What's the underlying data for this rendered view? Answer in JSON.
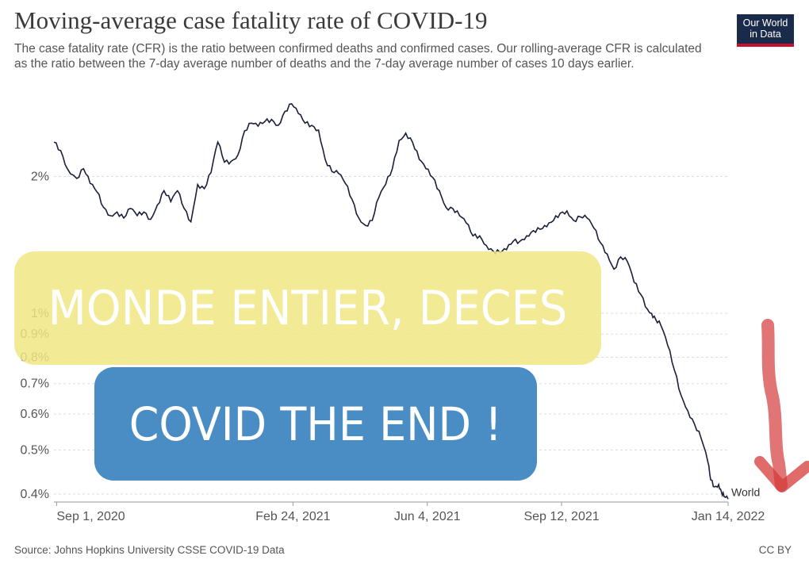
{
  "header": {
    "title": "Moving-average case fatality rate of COVID-19",
    "subtitle": "The case fatality rate (CFR) is the ratio between confirmed deaths and confirmed cases. Our rolling-average CFR is calculated as the ratio between the 7-day average number of deaths and the 7-day average number of cases 10 days earlier.",
    "logo_line1": "Our World",
    "logo_line2": "in Data"
  },
  "footer": {
    "source": "Source: Johns Hopkins University CSSE COVID-19 Data",
    "license": "CC BY"
  },
  "overlay": {
    "banner_top": "MONDE ENTIER, DECES",
    "banner_bottom": "COVID THE END !"
  },
  "colors": {
    "line": "#1a1f3a",
    "banner_yellow": "#f0e682",
    "banner_blue": "#4a8dc4",
    "arrow": "#d43a3a",
    "logo_bg": "#1a2a4a",
    "logo_accent": "#c8102e"
  },
  "chart_data": {
    "type": "line",
    "title": "Moving-average case fatality rate of COVID-19",
    "xlabel": "",
    "ylabel": "",
    "y_scale": "log",
    "ylim": [
      0.4,
      2.9
    ],
    "y_ticks": [
      {
        "value": 0.4,
        "label": "0.4%"
      },
      {
        "value": 0.5,
        "label": "0.5%"
      },
      {
        "value": 0.6,
        "label": "0.6%"
      },
      {
        "value": 0.7,
        "label": "0.7%"
      },
      {
        "value": 0.8,
        "label": "0.8%"
      },
      {
        "value": 0.9,
        "label": "0.9%"
      },
      {
        "value": 1.0,
        "label": "1%"
      },
      {
        "value": 2.0,
        "label": "2%"
      }
    ],
    "x_ticks": [
      {
        "day": 0,
        "label": "Sep 1, 2020"
      },
      {
        "day": 176,
        "label": "Feb 24, 2021"
      },
      {
        "day": 276,
        "label": "Jun 4, 2021"
      },
      {
        "day": 376,
        "label": "Sep 12, 2021"
      },
      {
        "day": 500,
        "label": "Jan 14, 2022"
      }
    ],
    "x_range_days": [
      -2,
      500
    ],
    "series": [
      {
        "name": "World",
        "x_days": [
          -2,
          3,
          8,
          15,
          20,
          25,
          30,
          35,
          40,
          45,
          50,
          55,
          60,
          65,
          70,
          75,
          80,
          85,
          90,
          95,
          100,
          105,
          110,
          115,
          120,
          125,
          130,
          135,
          140,
          145,
          150,
          155,
          160,
          165,
          170,
          175,
          180,
          185,
          190,
          195,
          200,
          205,
          210,
          215,
          220,
          225,
          230,
          235,
          240,
          245,
          250,
          255,
          260,
          265,
          270,
          275,
          280,
          285,
          290,
          295,
          300,
          305,
          310,
          315,
          320,
          325,
          330,
          335,
          340,
          345,
          350,
          355,
          360,
          365,
          370,
          375,
          380,
          385,
          390,
          395,
          400,
          405,
          410,
          415,
          420,
          425,
          430,
          435,
          440,
          443,
          446,
          450,
          455,
          460,
          465,
          470,
          475,
          480,
          485,
          487,
          490,
          493,
          495,
          497,
          500
        ],
        "values": [
          2.38,
          2.28,
          2.08,
          1.98,
          2.08,
          1.93,
          1.85,
          1.71,
          1.64,
          1.67,
          1.62,
          1.7,
          1.64,
          1.67,
          1.61,
          1.73,
          1.86,
          1.76,
          1.86,
          1.7,
          1.59,
          1.92,
          1.88,
          2.04,
          2.38,
          2.15,
          2.16,
          2.23,
          2.52,
          2.62,
          2.58,
          2.64,
          2.67,
          2.59,
          2.78,
          2.89,
          2.75,
          2.62,
          2.59,
          2.53,
          2.18,
          2.05,
          2.03,
          1.93,
          1.78,
          1.62,
          1.56,
          1.6,
          1.8,
          1.92,
          2.08,
          2.4,
          2.49,
          2.38,
          2.18,
          2.08,
          1.99,
          1.86,
          1.71,
          1.7,
          1.64,
          1.58,
          1.48,
          1.48,
          1.41,
          1.37,
          1.36,
          1.38,
          1.44,
          1.44,
          1.48,
          1.52,
          1.53,
          1.55,
          1.6,
          1.66,
          1.68,
          1.6,
          1.63,
          1.62,
          1.54,
          1.43,
          1.35,
          1.25,
          1.33,
          1.3,
          1.17,
          1.1,
          1.02,
          1.0,
          0.97,
          0.94,
          0.85,
          0.75,
          0.66,
          0.61,
          0.57,
          0.53,
          0.47,
          0.43,
          0.415,
          0.42,
          0.405,
          0.395,
          0.39
        ]
      }
    ]
  }
}
